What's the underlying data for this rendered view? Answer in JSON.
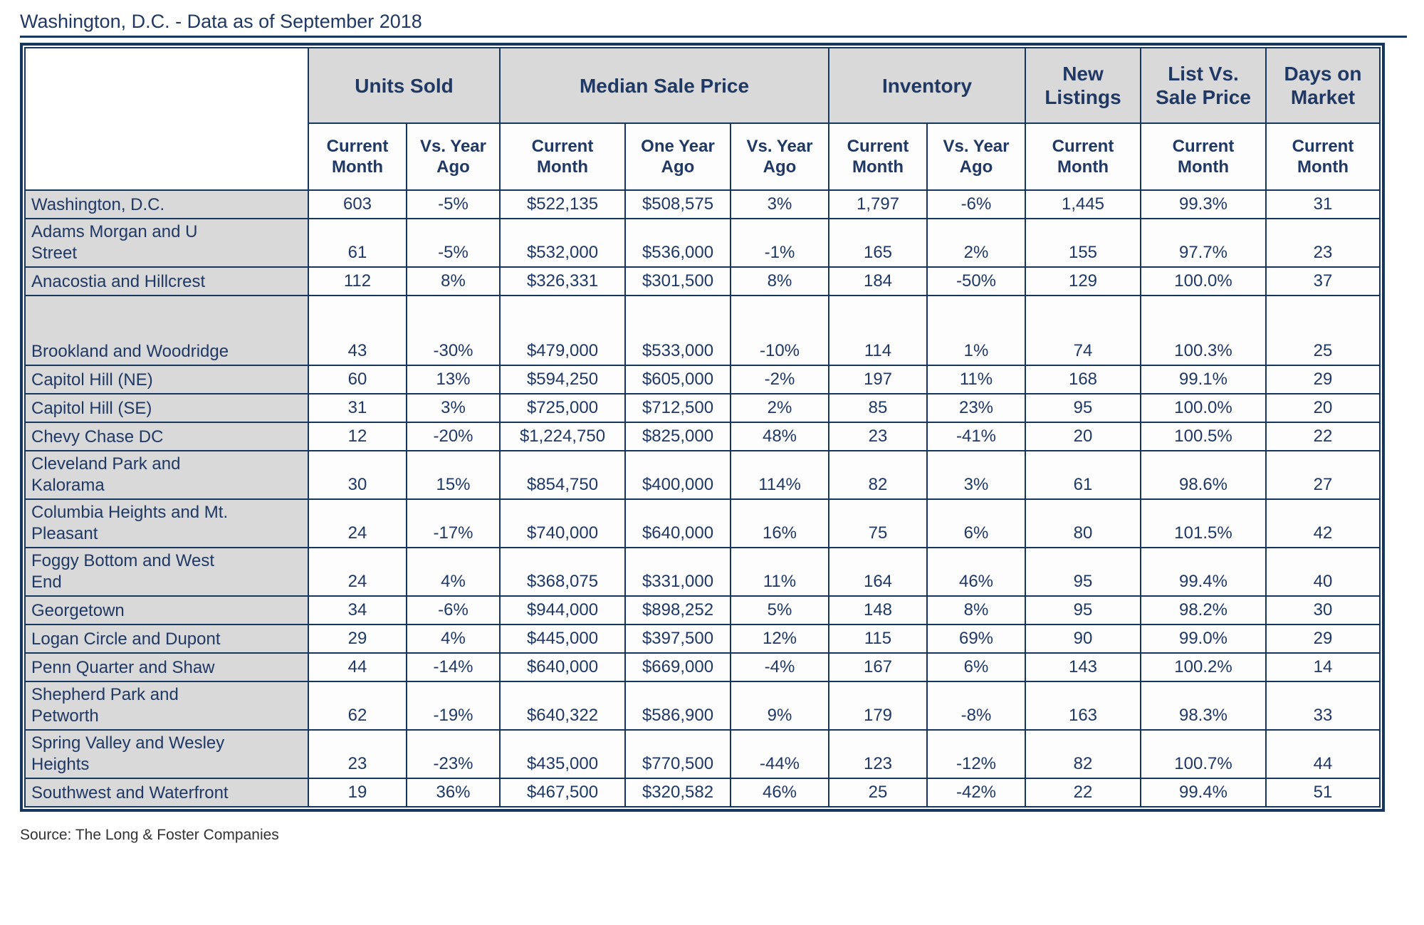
{
  "chart_data": {
    "type": "table",
    "title": "Washington, D.C. - Data as of September 2018",
    "source": "Source: The Long & Foster Companies",
    "column_groups": [
      {
        "label": "Units Sold",
        "span": 2
      },
      {
        "label": "Median Sale Price",
        "span": 3
      },
      {
        "label": "Inventory",
        "span": 2
      },
      {
        "label": "New\nListings",
        "span": 1
      },
      {
        "label": "List Vs.\nSale Price",
        "span": 1
      },
      {
        "label": "Days on\nMarket",
        "span": 1
      }
    ],
    "sub_columns": [
      "Current\nMonth",
      "Vs. Year\nAgo",
      "Current\nMonth",
      "One Year\nAgo",
      "Vs. Year\nAgo",
      "Current\nMonth",
      "Vs. Year\nAgo",
      "Current\nMonth",
      "Current\nMonth",
      "Current\nMonth"
    ],
    "rows": [
      {
        "region": "Washington, D.C.",
        "values": [
          "603",
          "-5%",
          "$522,135",
          "$508,575",
          "3%",
          "1,797",
          "-6%",
          "1,445",
          "99.3%",
          "31"
        ]
      },
      {
        "region": "Adams Morgan and U\nStreet",
        "values": [
          "61",
          "-5%",
          "$532,000",
          "$536,000",
          "-1%",
          "165",
          "2%",
          "155",
          "97.7%",
          "23"
        ]
      },
      {
        "region": "Anacostia and Hillcrest",
        "values": [
          "112",
          "8%",
          "$326,331",
          "$301,500",
          "8%",
          "184",
          "-50%",
          "129",
          "100.0%",
          "37"
        ]
      },
      {
        "region": "\n\nBrookland and Woodridge",
        "values": [
          "43",
          "-30%",
          "$479,000",
          "$533,000",
          "-10%",
          "114",
          "1%",
          "74",
          "100.3%",
          "25"
        ]
      },
      {
        "region": "Capitol Hill (NE)",
        "values": [
          "60",
          "13%",
          "$594,250",
          "$605,000",
          "-2%",
          "197",
          "11%",
          "168",
          "99.1%",
          "29"
        ]
      },
      {
        "region": "Capitol Hill (SE)",
        "values": [
          "31",
          "3%",
          "$725,000",
          "$712,500",
          "2%",
          "85",
          "23%",
          "95",
          "100.0%",
          "20"
        ]
      },
      {
        "region": "Chevy Chase DC",
        "values": [
          "12",
          "-20%",
          "$1,224,750",
          "$825,000",
          "48%",
          "23",
          "-41%",
          "20",
          "100.5%",
          "22"
        ]
      },
      {
        "region": "Cleveland Park and\nKalorama",
        "values": [
          "30",
          "15%",
          "$854,750",
          "$400,000",
          "114%",
          "82",
          "3%",
          "61",
          "98.6%",
          "27"
        ]
      },
      {
        "region": "Columbia Heights and Mt.\nPleasant",
        "values": [
          "24",
          "-17%",
          "$740,000",
          "$640,000",
          "16%",
          "75",
          "6%",
          "80",
          "101.5%",
          "42"
        ]
      },
      {
        "region": "Foggy Bottom and West\nEnd",
        "values": [
          "24",
          "4%",
          "$368,075",
          "$331,000",
          "11%",
          "164",
          "46%",
          "95",
          "99.4%",
          "40"
        ]
      },
      {
        "region": "Georgetown",
        "values": [
          "34",
          "-6%",
          "$944,000",
          "$898,252",
          "5%",
          "148",
          "8%",
          "95",
          "98.2%",
          "30"
        ]
      },
      {
        "region": "Logan Circle and Dupont",
        "values": [
          "29",
          "4%",
          "$445,000",
          "$397,500",
          "12%",
          "115",
          "69%",
          "90",
          "99.0%",
          "29"
        ]
      },
      {
        "region": "Penn Quarter and Shaw",
        "values": [
          "44",
          "-14%",
          "$640,000",
          "$669,000",
          "-4%",
          "167",
          "6%",
          "143",
          "100.2%",
          "14"
        ]
      },
      {
        "region": "Shepherd Park and\nPetworth",
        "values": [
          "62",
          "-19%",
          "$640,322",
          "$586,900",
          "9%",
          "179",
          "-8%",
          "163",
          "98.3%",
          "33"
        ]
      },
      {
        "region": "Spring Valley and Wesley\nHeights",
        "values": [
          "23",
          "-23%",
          "$435,000",
          "$770,500",
          "-44%",
          "123",
          "-12%",
          "82",
          "100.7%",
          "44"
        ]
      },
      {
        "region": "Southwest and Waterfront",
        "values": [
          "19",
          "36%",
          "$467,500",
          "$320,582",
          "46%",
          "25",
          "-42%",
          "22",
          "99.4%",
          "51"
        ]
      }
    ],
    "layout": {
      "group_start_columns": [
        0,
        2,
        5,
        7,
        8,
        9
      ]
    },
    "colors": {
      "border_navy": "#17365d",
      "text_navy": "#1f3864",
      "header_grey": "#d9d9d9",
      "cell_white": "#fdfdfe"
    }
  }
}
